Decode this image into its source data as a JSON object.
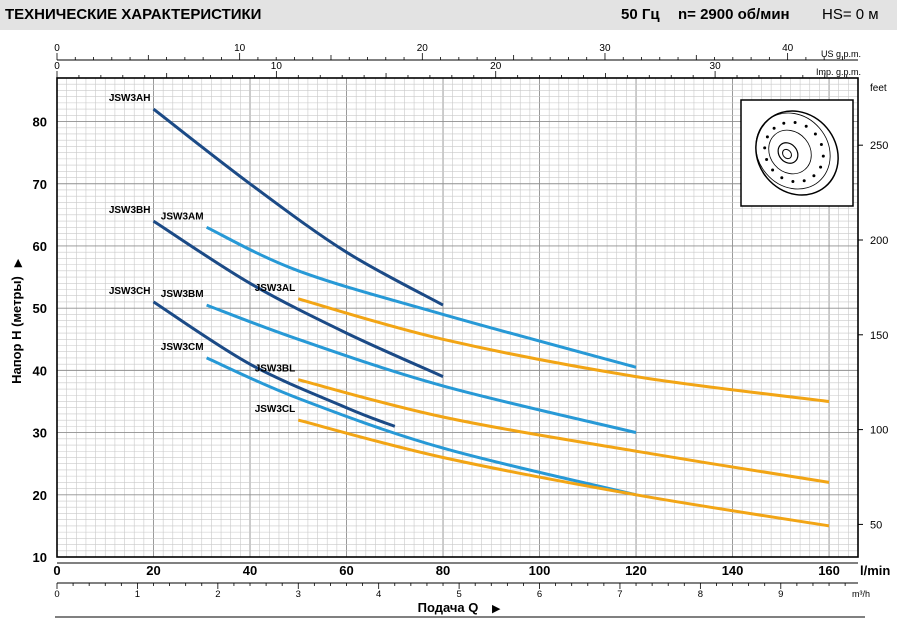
{
  "header": {
    "title": "ТЕХНИЧЕСКИЕ ХАРАКТЕРИСТИКИ",
    "freq": "50 Гц",
    "speed": "n= 2900  об/мин",
    "hs": "HS= 0 м"
  },
  "chart_data": {
    "type": "line",
    "title": "ТЕХНИЧЕСКИЕ ХАРАКТЕРИСТИКИ",
    "xlabel": "Подача Q",
    "ylabel": "Напор H (метры)",
    "xlim": [
      0,
      166
    ],
    "ylim": [
      10,
      87
    ],
    "x_unit": "l/min",
    "y2_unit": "feet",
    "x_ticks": [
      0,
      20,
      40,
      60,
      80,
      100,
      120,
      140,
      160
    ],
    "y_ticks": [
      10,
      20,
      30,
      40,
      50,
      60,
      70,
      80
    ],
    "y2_ticks": [
      50,
      100,
      150,
      200,
      250
    ],
    "top_axes": [
      {
        "unit": "US g.p.m.",
        "ticks": [
          0,
          10,
          20,
          30,
          40
        ]
      },
      {
        "unit": "Imp. g.p.m.",
        "ticks": [
          0,
          10,
          20,
          30
        ]
      }
    ],
    "bottom_axis": {
      "unit": "m³/h",
      "ticks": [
        0,
        1,
        2,
        3,
        4,
        5,
        6,
        7,
        8,
        9
      ]
    },
    "series": [
      {
        "name": "JSW3AH",
        "color": "#1b4a86",
        "x": [
          20,
          40,
          60,
          80
        ],
        "y": [
          82,
          70,
          59,
          50.5
        ]
      },
      {
        "name": "JSW3BH",
        "color": "#1b4a86",
        "x": [
          20,
          40,
          60,
          80
        ],
        "y": [
          64,
          54,
          46,
          39
        ]
      },
      {
        "name": "JSW3CH",
        "color": "#1b4a86",
        "x": [
          20,
          40,
          60,
          70
        ],
        "y": [
          51,
          41,
          34,
          31
        ]
      },
      {
        "name": "JSW3AM",
        "color": "#2799d6",
        "x": [
          31,
          50,
          80,
          120
        ],
        "y": [
          63,
          56,
          49,
          40.5
        ]
      },
      {
        "name": "JSW3BM",
        "color": "#2799d6",
        "x": [
          31,
          50,
          80,
          120
        ],
        "y": [
          50.5,
          45,
          37.5,
          30
        ]
      },
      {
        "name": "JSW3CM",
        "color": "#2799d6",
        "x": [
          31,
          50,
          80,
          120
        ],
        "y": [
          42,
          35.5,
          27.5,
          20
        ]
      },
      {
        "name": "JSW3AL",
        "color": "#f2a515",
        "x": [
          50,
          80,
          120,
          160
        ],
        "y": [
          51.5,
          45,
          39,
          35
        ]
      },
      {
        "name": "JSW3BL",
        "color": "#f2a515",
        "x": [
          50,
          80,
          120,
          160
        ],
        "y": [
          38.5,
          32.5,
          27,
          22
        ]
      },
      {
        "name": "JSW3CL",
        "color": "#f2a515",
        "x": [
          50,
          80,
          120,
          160
        ],
        "y": [
          32,
          26,
          20,
          15
        ]
      }
    ]
  }
}
